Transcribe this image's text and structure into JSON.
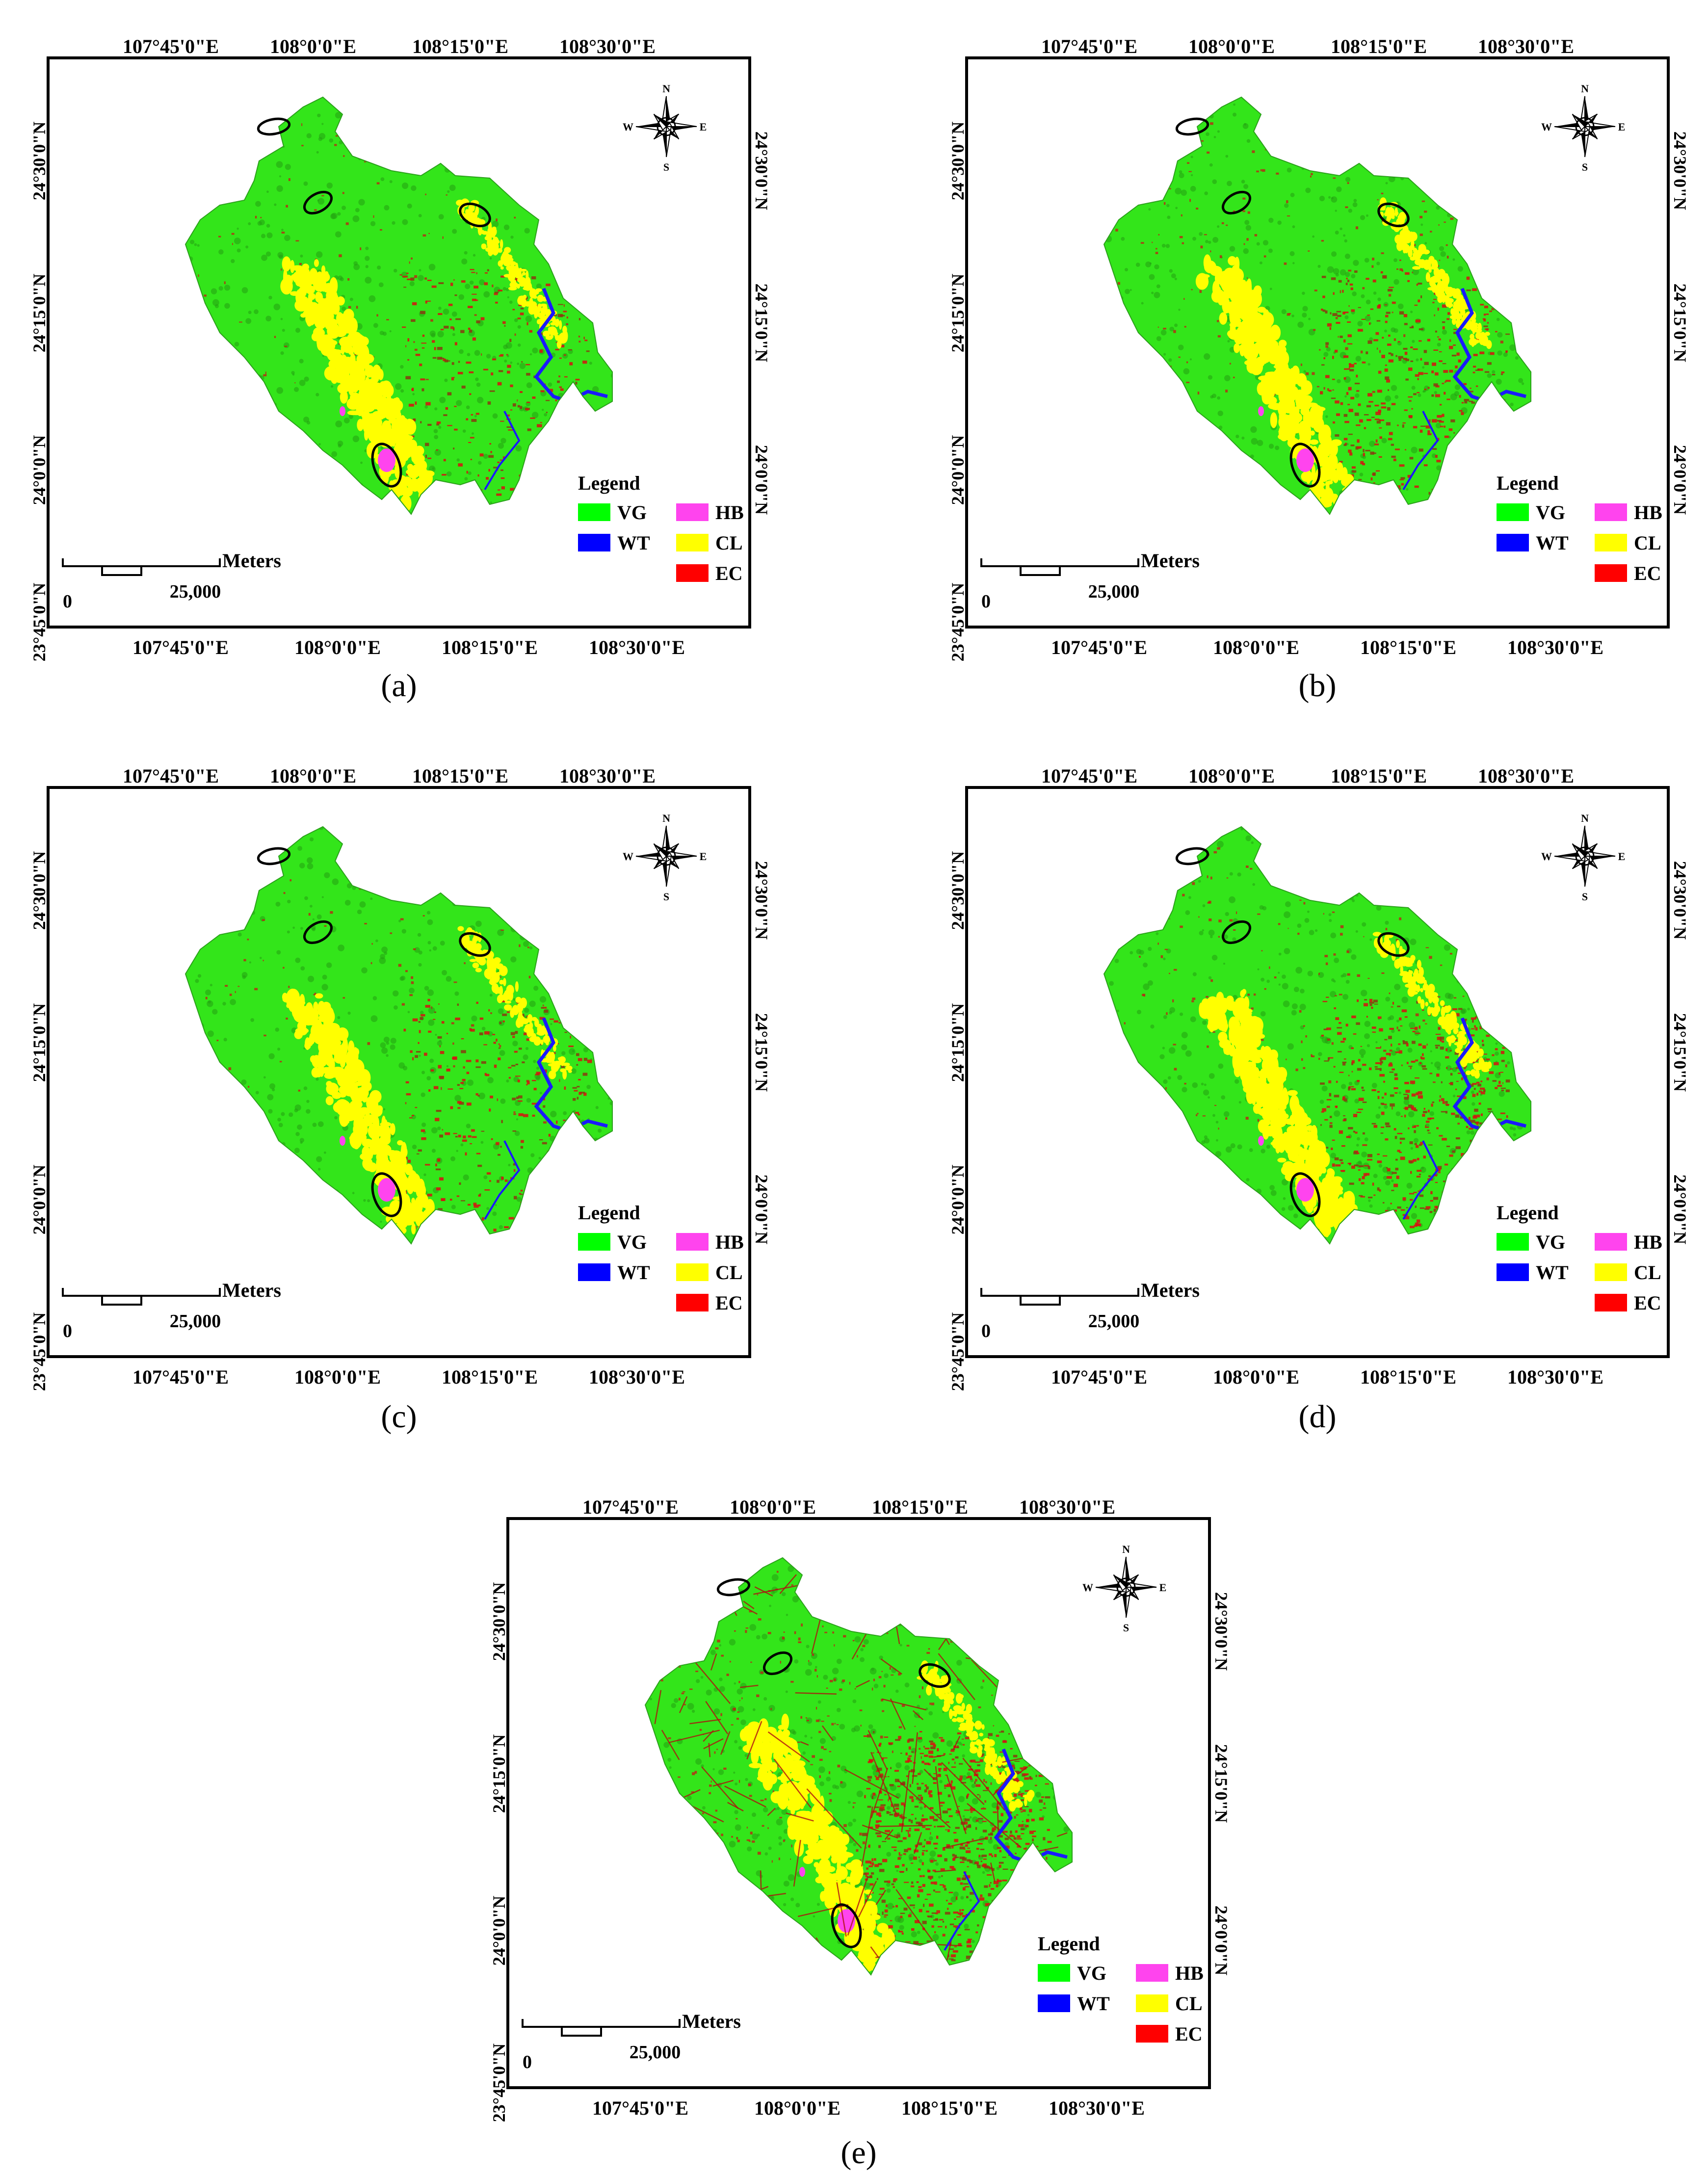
{
  "panels": [
    {
      "id": "a",
      "caption": "(a)"
    },
    {
      "id": "b",
      "caption": "(b)"
    },
    {
      "id": "c",
      "caption": "(c)"
    },
    {
      "id": "d",
      "caption": "(d)"
    },
    {
      "id": "e",
      "caption": "(e)"
    }
  ],
  "map": {
    "top_lon_labels": [
      "107°45'0\"E",
      "108°0'0\"E",
      "108°15'0\"E",
      "108°30'0\"E"
    ],
    "bottom_lon_labels": [
      "107°45'0\"E",
      "108°0'0\"E",
      "108°15'0\"E",
      "108°30'0\"E"
    ],
    "left_lat_labels": [
      "24°30'0\"N",
      "24°15'0\"N",
      "24°0'0\"N",
      "23°45'0\"N"
    ],
    "right_lat_labels": [
      "24°30'0\"N",
      "24°15'0\"N",
      "24°0'0\"N"
    ],
    "compass": {
      "n": "N",
      "s": "S",
      "e": "E",
      "w": "W"
    },
    "scale": {
      "unit": "Meters",
      "zero": "0",
      "value": "25,000"
    },
    "legend": {
      "title": "Legend",
      "items": [
        {
          "code": "VG",
          "color": "#00ff00"
        },
        {
          "code": "WT",
          "color": "#0000ff"
        },
        {
          "code": "HB",
          "color": "#ff44ee"
        },
        {
          "code": "CL",
          "color": "#ffff00"
        },
        {
          "code": "EC",
          "color": "#ff0000"
        }
      ]
    },
    "colors": {
      "vegetation": "#33e51a",
      "water": "#1a1aff",
      "highlight_ring": "#000000"
    }
  }
}
